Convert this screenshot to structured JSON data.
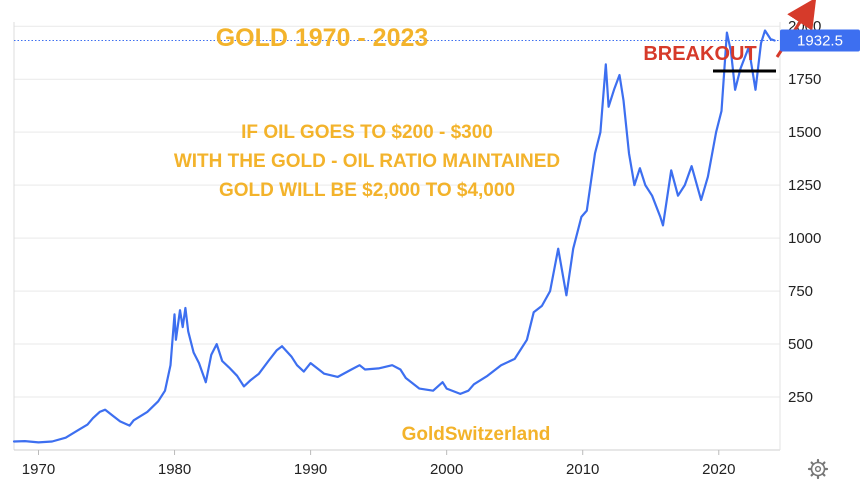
{
  "colors": {
    "line": "#3d6ff0",
    "annotation": "#f3b32b",
    "breakout": "#d63a2a",
    "price_tag_bg": "#3d6ff0",
    "price_tag_text": "#ffffff",
    "grid": "#e9e9e9"
  },
  "icons": {
    "settings": "gear-icon"
  },
  "chart_data": {
    "type": "line",
    "title": "GOLD  1970 - 2023",
    "xlabel": "",
    "ylabel": "",
    "xlim": [
      1968.2,
      2024.5
    ],
    "ylim": [
      0,
      2020
    ],
    "x_ticks": [
      "1970",
      "1980",
      "1990",
      "2000",
      "2010",
      "2020"
    ],
    "y_ticks": [
      "250",
      "500",
      "750",
      "1000",
      "1250",
      "1500",
      "1750",
      "2000"
    ],
    "grid": "horizontal",
    "last_price": "1932.5",
    "annotations": {
      "lines": [
        "IF OIL GOES TO $200 - $300",
        "WITH THE GOLD - OIL RATIO MAINTAINED",
        "GOLD WILL BE $2,000 TO $4,000"
      ],
      "breakout": "BREAKOUT",
      "watermark": "GoldSwitzerland"
    },
    "series": [
      {
        "values": [
          [
            1968.2,
            40
          ],
          [
            1969.0,
            42
          ],
          [
            1970.0,
            36
          ],
          [
            1971.0,
            40
          ],
          [
            1972.0,
            58
          ],
          [
            1973.0,
            97
          ],
          [
            1973.6,
            120
          ],
          [
            1974.0,
            150
          ],
          [
            1974.5,
            180
          ],
          [
            1974.9,
            190
          ],
          [
            1975.5,
            160
          ],
          [
            1976.0,
            135
          ],
          [
            1976.7,
            115
          ],
          [
            1977.0,
            140
          ],
          [
            1978.0,
            180
          ],
          [
            1978.8,
            230
          ],
          [
            1979.3,
            280
          ],
          [
            1979.7,
            400
          ],
          [
            1980.0,
            640
          ],
          [
            1980.1,
            520
          ],
          [
            1980.4,
            660
          ],
          [
            1980.6,
            580
          ],
          [
            1980.8,
            670
          ],
          [
            1981.0,
            560
          ],
          [
            1981.4,
            460
          ],
          [
            1981.8,
            410
          ],
          [
            1982.3,
            320
          ],
          [
            1982.7,
            450
          ],
          [
            1983.1,
            500
          ],
          [
            1983.5,
            420
          ],
          [
            1984.0,
            390
          ],
          [
            1984.6,
            350
          ],
          [
            1985.1,
            300
          ],
          [
            1985.6,
            330
          ],
          [
            1986.2,
            360
          ],
          [
            1986.9,
            420
          ],
          [
            1987.5,
            470
          ],
          [
            1987.9,
            490
          ],
          [
            1988.6,
            440
          ],
          [
            1989.0,
            400
          ],
          [
            1989.5,
            370
          ],
          [
            1990.0,
            410
          ],
          [
            1990.6,
            380
          ],
          [
            1991.0,
            360
          ],
          [
            1992.0,
            345
          ],
          [
            1993.0,
            380
          ],
          [
            1993.6,
            400
          ],
          [
            1994.0,
            380
          ],
          [
            1995.0,
            385
          ],
          [
            1996.0,
            400
          ],
          [
            1996.6,
            380
          ],
          [
            1997.0,
            340
          ],
          [
            1998.0,
            290
          ],
          [
            1999.0,
            280
          ],
          [
            1999.7,
            320
          ],
          [
            2000.0,
            290
          ],
          [
            2001.0,
            265
          ],
          [
            2001.6,
            280
          ],
          [
            2002.0,
            310
          ],
          [
            2003.0,
            350
          ],
          [
            2004.0,
            400
          ],
          [
            2005.0,
            430
          ],
          [
            2005.9,
            520
          ],
          [
            2006.4,
            650
          ],
          [
            2007.0,
            680
          ],
          [
            2007.6,
            750
          ],
          [
            2008.2,
            950
          ],
          [
            2008.8,
            730
          ],
          [
            2009.3,
            950
          ],
          [
            2009.9,
            1100
          ],
          [
            2010.3,
            1130
          ],
          [
            2010.9,
            1400
          ],
          [
            2011.3,
            1500
          ],
          [
            2011.7,
            1820
          ],
          [
            2011.9,
            1620
          ],
          [
            2012.3,
            1700
          ],
          [
            2012.7,
            1770
          ],
          [
            2013.0,
            1650
          ],
          [
            2013.4,
            1400
          ],
          [
            2013.8,
            1250
          ],
          [
            2014.2,
            1330
          ],
          [
            2014.6,
            1250
          ],
          [
            2015.1,
            1200
          ],
          [
            2015.7,
            1100
          ],
          [
            2015.9,
            1060
          ],
          [
            2016.5,
            1320
          ],
          [
            2017.0,
            1200
          ],
          [
            2017.5,
            1250
          ],
          [
            2018.0,
            1340
          ],
          [
            2018.7,
            1180
          ],
          [
            2019.2,
            1290
          ],
          [
            2019.8,
            1500
          ],
          [
            2020.2,
            1600
          ],
          [
            2020.6,
            1970
          ],
          [
            2020.9,
            1880
          ],
          [
            2021.2,
            1700
          ],
          [
            2021.6,
            1800
          ],
          [
            2022.2,
            1900
          ],
          [
            2022.7,
            1700
          ],
          [
            2023.1,
            1920
          ],
          [
            2023.4,
            1980
          ],
          [
            2023.8,
            1940
          ],
          [
            2024.1,
            1932.5
          ]
        ]
      }
    ]
  }
}
